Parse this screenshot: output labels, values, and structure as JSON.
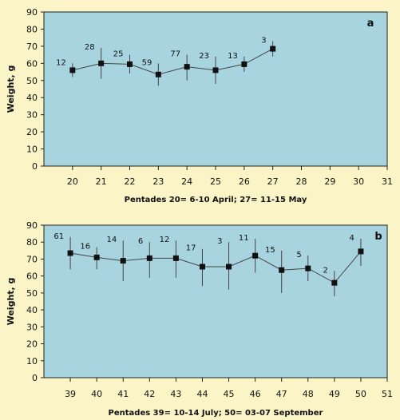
{
  "chart_data": [
    {
      "type": "line",
      "panel_label": "a",
      "ylabel": "Weight, g",
      "xlabel": "Pentades 20= 6-10 April; 27= 11-15 May",
      "xlim": [
        19,
        31
      ],
      "ylim": [
        0,
        90
      ],
      "xticks": [
        20,
        21,
        22,
        23,
        24,
        25,
        26,
        27,
        28,
        29,
        30,
        31
      ],
      "yticks": [
        0,
        10,
        20,
        30,
        40,
        50,
        60,
        70,
        80,
        90
      ],
      "points": [
        {
          "x": 20,
          "y": 56,
          "err_low": 52,
          "err_high": 60,
          "n": 12
        },
        {
          "x": 21,
          "y": 60,
          "err_low": 51,
          "err_high": 69,
          "n": 28
        },
        {
          "x": 22,
          "y": 59.5,
          "err_low": 54,
          "err_high": 65,
          "n": 25
        },
        {
          "x": 23,
          "y": 53.5,
          "err_low": 47,
          "err_high": 60,
          "n": 59
        },
        {
          "x": 24,
          "y": 58,
          "err_low": 50,
          "err_high": 65,
          "n": 77
        },
        {
          "x": 25,
          "y": 56,
          "err_low": 48,
          "err_high": 64,
          "n": 23
        },
        {
          "x": 26,
          "y": 59.5,
          "err_low": 55,
          "err_high": 64,
          "n": 13
        },
        {
          "x": 27,
          "y": 68.5,
          "err_low": 64,
          "err_high": 73,
          "n": 3
        }
      ]
    },
    {
      "type": "line",
      "panel_label": "b",
      "ylabel": "Weight, g",
      "xlabel": "Pentades 39= 10-14 July; 50= 03-07 September",
      "xlim": [
        38,
        51
      ],
      "ylim": [
        0,
        90
      ],
      "xticks": [
        39,
        40,
        41,
        42,
        43,
        44,
        45,
        46,
        47,
        48,
        49,
        50,
        51
      ],
      "yticks": [
        0,
        10,
        20,
        30,
        40,
        50,
        60,
        70,
        80,
        90
      ],
      "points": [
        {
          "x": 39,
          "y": 73.5,
          "err_low": 64,
          "err_high": 83,
          "n": 61
        },
        {
          "x": 40,
          "y": 71,
          "err_low": 64,
          "err_high": 77,
          "n": 16
        },
        {
          "x": 41,
          "y": 69,
          "err_low": 57,
          "err_high": 81,
          "n": 14
        },
        {
          "x": 42,
          "y": 70.5,
          "err_low": 59,
          "err_high": 80,
          "n": 6
        },
        {
          "x": 43,
          "y": 70.5,
          "err_low": 59,
          "err_high": 81,
          "n": 12
        },
        {
          "x": 44,
          "y": 65.5,
          "err_low": 54,
          "err_high": 76,
          "n": 17
        },
        {
          "x": 45,
          "y": 65.5,
          "err_low": 52,
          "err_high": 80,
          "n": 3
        },
        {
          "x": 46,
          "y": 72,
          "err_low": 62,
          "err_high": 82,
          "n": 11
        },
        {
          "x": 47,
          "y": 63.5,
          "err_low": 50,
          "err_high": 75,
          "n": 15
        },
        {
          "x": 48,
          "y": 64.5,
          "err_low": 57,
          "err_high": 72,
          "n": 5
        },
        {
          "x": 49,
          "y": 56,
          "err_low": 48,
          "err_high": 63,
          "n": 2
        },
        {
          "x": 50,
          "y": 74.5,
          "err_low": 66,
          "err_high": 82,
          "n": 4
        }
      ]
    }
  ],
  "colors": {
    "page_background": "#fbf4c6",
    "plot_background": "#a8d4e0",
    "marker": "#111111",
    "line": "#444444"
  }
}
